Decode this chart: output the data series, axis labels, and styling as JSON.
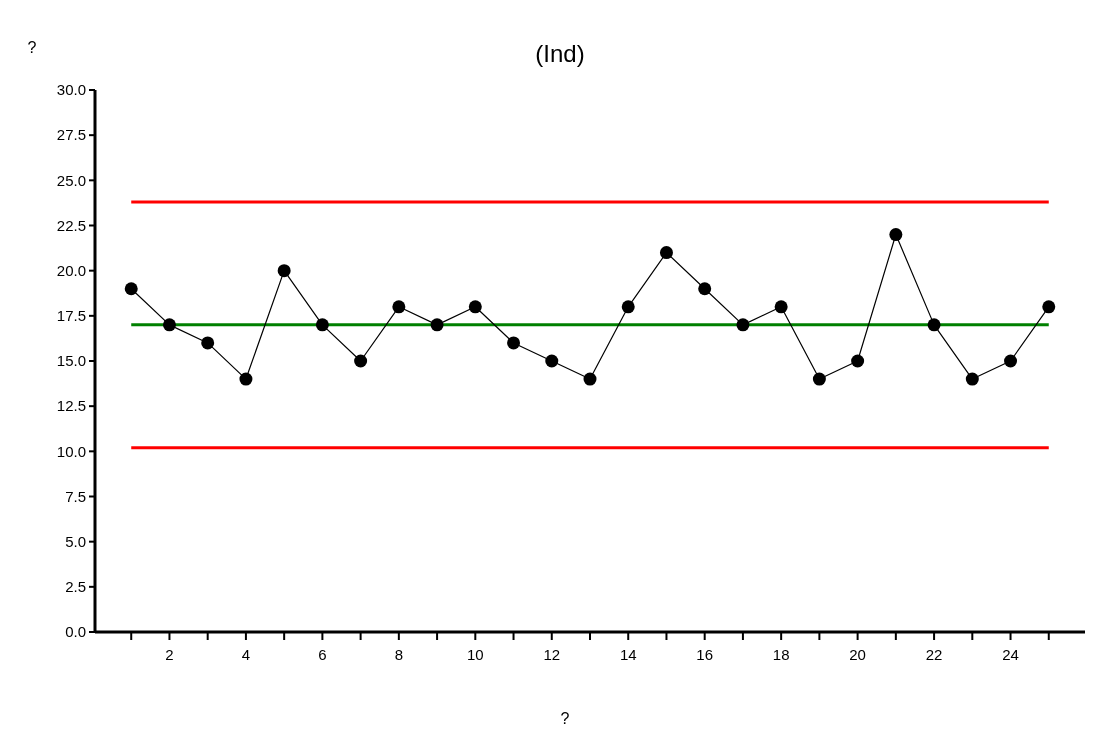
{
  "chart_data": {
    "type": "line",
    "title": "(Ind)",
    "xlabel": "?",
    "ylabel": "?",
    "x": [
      1,
      2,
      3,
      4,
      5,
      6,
      7,
      8,
      9,
      10,
      11,
      12,
      13,
      14,
      15,
      16,
      17,
      18,
      19,
      20,
      21,
      22,
      23,
      24,
      25
    ],
    "series": [
      {
        "color": "#000000",
        "values": [
          19,
          17,
          16,
          14,
          20,
          17,
          15,
          18,
          17,
          18,
          16,
          15,
          14,
          18,
          21,
          19,
          17,
          18,
          14,
          15,
          22,
          17,
          14,
          15,
          18
        ]
      }
    ],
    "marker": "circle",
    "line_style": "solid",
    "xlim": [
      0,
      26
    ],
    "xticks": [
      {
        "value": 1,
        "label": null
      },
      2,
      {
        "value": 3,
        "label": null
      },
      4,
      {
        "value": 5,
        "label": null
      },
      6,
      {
        "value": 7,
        "label": null
      },
      8,
      {
        "value": 9,
        "label": null
      },
      10,
      {
        "value": 11,
        "label": null
      },
      12,
      {
        "value": 13,
        "label": null
      },
      14,
      {
        "value": 15,
        "label": null
      },
      16,
      {
        "value": 17,
        "label": null
      },
      18,
      {
        "value": 19,
        "label": null
      },
      20,
      {
        "value": 21,
        "label": null
      },
      22,
      {
        "value": 23,
        "label": null
      },
      24,
      {
        "value": 25,
        "label": null
      }
    ],
    "ylim": [
      0,
      30
    ],
    "yticks": [
      {
        "value": 0,
        "label": "0.0"
      },
      {
        "value": 2.5,
        "label": "2.5"
      },
      {
        "value": 5,
        "label": "5.0"
      },
      {
        "value": 7.5,
        "label": "7.5"
      },
      {
        "value": 10,
        "label": "10.0"
      },
      {
        "value": 12.5,
        "label": "12.5"
      },
      {
        "value": 15,
        "label": "15.0"
      },
      {
        "value": 17.5,
        "label": "17.5"
      },
      {
        "value": 20,
        "label": "20.0"
      },
      {
        "value": 22.5,
        "label": "22.5"
      },
      {
        "value": 25,
        "label": "25.0"
      },
      {
        "value": 27.5,
        "label": "27.5"
      },
      {
        "value": 30,
        "label": "30.0"
      }
    ],
    "ref_lines": [
      {
        "axis": "y",
        "value": 23.8,
        "color": "#ff0000"
      },
      {
        "axis": "y",
        "value": 17.0,
        "color": "#008000"
      },
      {
        "axis": "y",
        "value": 10.2,
        "color": "#ff0000"
      }
    ]
  }
}
